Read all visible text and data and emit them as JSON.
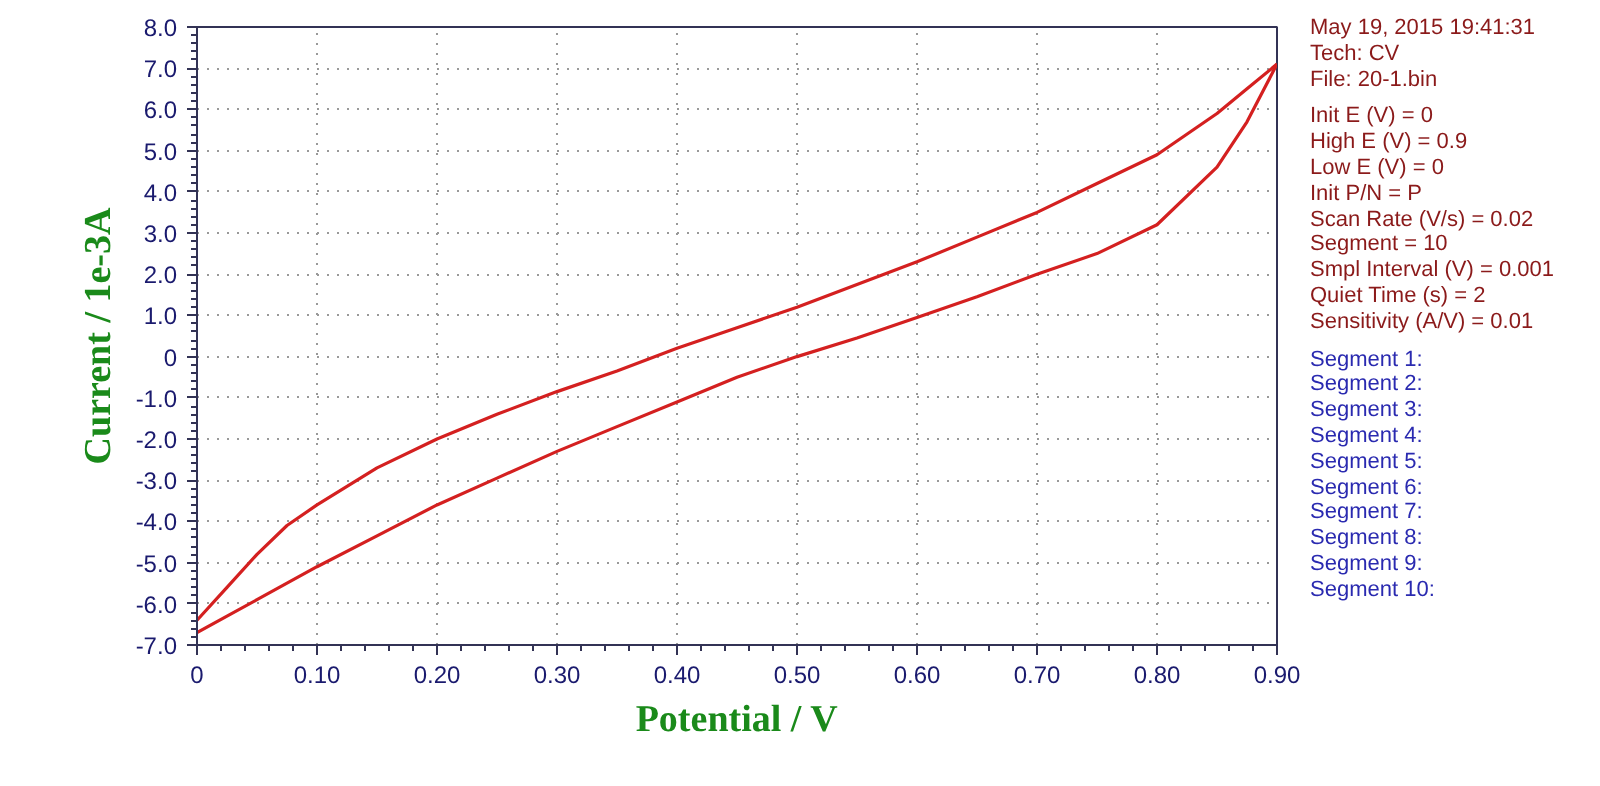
{
  "chart_data": {
    "type": "line",
    "xlabel": "Potential / V",
    "ylabel": "Current / 1e-3A",
    "xlim": [
      0,
      0.9
    ],
    "ylim": [
      -7,
      8
    ],
    "xticks": [
      0,
      {
        "value": 0.1,
        "label": "0.10"
      },
      {
        "value": 0.2,
        "label": "0.20"
      },
      {
        "value": 0.3,
        "label": "0.30"
      },
      {
        "value": 0.4,
        "label": "0.40"
      },
      {
        "value": 0.5,
        "label": "0.50"
      },
      {
        "value": 0.6,
        "label": "0.60"
      },
      {
        "value": 0.7,
        "label": "0.70"
      },
      {
        "value": 0.8,
        "label": "0.80"
      },
      {
        "value": 0.9,
        "label": "0.90"
      }
    ],
    "yticks": [
      {
        "value": -7,
        "label": "-7.0"
      },
      {
        "value": -6,
        "label": "-6.0"
      },
      {
        "value": -5,
        "label": "-5.0"
      },
      {
        "value": -4,
        "label": "-4.0"
      },
      {
        "value": -3,
        "label": "-3.0"
      },
      {
        "value": -2,
        "label": "-2.0"
      },
      {
        "value": -1,
        "label": "-1.0"
      },
      0,
      {
        "value": 1,
        "label": "1.0"
      },
      {
        "value": 2,
        "label": "2.0"
      },
      {
        "value": 3,
        "label": "3.0"
      },
      {
        "value": 4,
        "label": "4.0"
      },
      {
        "value": 5,
        "label": "5.0"
      },
      {
        "value": 6,
        "label": "6.0"
      },
      {
        "value": 7,
        "label": "7.0"
      },
      {
        "value": 8,
        "label": "8.0"
      }
    ],
    "grid": true,
    "marker": "none",
    "series": [
      {
        "color": "#d42020",
        "x": [
          0,
          0.025,
          0.05,
          0.075,
          0.1,
          0.15,
          0.2,
          0.25,
          0.3,
          0.35,
          0.4,
          0.45,
          0.5,
          0.55,
          0.6,
          0.65,
          0.7,
          0.75,
          0.8,
          0.85,
          0.875,
          0.9
        ],
        "values": [
          -6.7,
          -6.3,
          -5.9,
          -5.5,
          -5.1,
          -4.35,
          -3.6,
          -2.95,
          -2.3,
          -1.7,
          -1.1,
          -0.5,
          0.0,
          0.45,
          0.95,
          1.45,
          2.0,
          2.5,
          3.2,
          4.6,
          5.7,
          7.1
        ]
      },
      {
        "color": "#d42020",
        "x": [
          0.9,
          0.875,
          0.85,
          0.8,
          0.75,
          0.7,
          0.65,
          0.6,
          0.55,
          0.5,
          0.45,
          0.4,
          0.35,
          0.3,
          0.25,
          0.2,
          0.15,
          0.1,
          0.075,
          0.05,
          0.025,
          0
        ],
        "values": [
          7.1,
          6.5,
          5.9,
          4.9,
          4.2,
          3.5,
          2.9,
          2.3,
          1.75,
          1.2,
          0.7,
          0.2,
          -0.35,
          -0.85,
          -1.4,
          -2.0,
          -2.7,
          -3.6,
          -4.1,
          -4.8,
          -5.6,
          -6.4
        ]
      }
    ],
    "annotations": [
      "May 19, 2015   19:41:31",
      "Tech: CV",
      "File: 20-1.bin",
      "Init E (V) = 0",
      "High E (V) = 0.9",
      "Low E (V) = 0",
      "Init P/N = P",
      "Scan Rate (V/s) = 0.02",
      "Segment = 10",
      "Smpl Interval (V) = 0.001",
      "Quiet Time (s) = 2",
      "Sensitivity (A/V) = 0.01",
      "Segment 1:",
      "Segment 2:",
      "Segment 3:",
      "Segment 4:",
      "Segment 5:",
      "Segment 6:",
      "Segment 7:",
      "Segment 8:",
      "Segment 9:",
      "Segment 10:"
    ]
  }
}
